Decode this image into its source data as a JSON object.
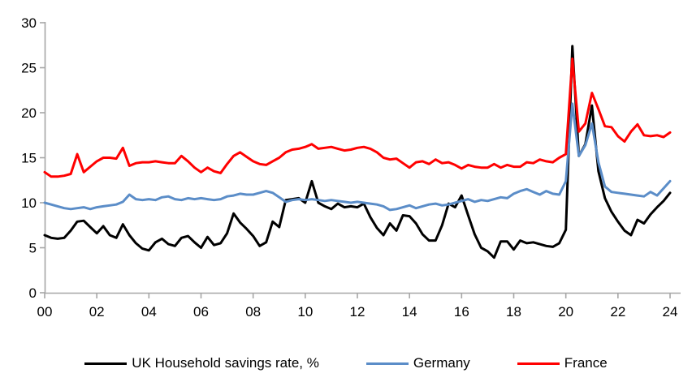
{
  "chart_data": {
    "type": "line",
    "title": "",
    "xlabel": "",
    "ylabel": "",
    "grid": false,
    "legend_position": "bottom",
    "x_start_year": 2000,
    "x_step_years": 0.25,
    "x_axis": {
      "tick_labels": [
        "00",
        "02",
        "04",
        "06",
        "08",
        "10",
        "12",
        "14",
        "16",
        "18",
        "20",
        "22",
        "24"
      ],
      "quarters_per_tick": 8
    },
    "y_axis": {
      "ticks": [
        0,
        5,
        10,
        15,
        20,
        25,
        30
      ],
      "range": [
        0,
        30
      ]
    },
    "series": [
      {
        "name": "UK Household savings rate, %",
        "color": "#000000",
        "values": [
          6.4,
          6.1,
          6.0,
          6.1,
          6.9,
          7.9,
          8.0,
          7.3,
          6.6,
          7.4,
          6.4,
          6.1,
          7.6,
          6.4,
          5.5,
          4.9,
          4.7,
          5.6,
          6.0,
          5.4,
          5.2,
          6.1,
          6.3,
          5.6,
          5.0,
          6.2,
          5.3,
          5.5,
          6.6,
          8.8,
          7.8,
          7.1,
          6.3,
          5.2,
          5.6,
          7.9,
          7.3,
          10.3,
          10.4,
          10.5,
          10.0,
          12.4,
          10.0,
          9.6,
          9.3,
          9.9,
          9.5,
          9.6,
          9.5,
          9.9,
          8.4,
          7.2,
          6.4,
          7.7,
          6.9,
          8.6,
          8.5,
          7.7,
          6.5,
          5.8,
          5.8,
          7.5,
          9.9,
          9.5,
          10.8,
          8.6,
          6.5,
          5.0,
          4.6,
          3.9,
          5.7,
          5.7,
          4.8,
          5.8,
          5.5,
          5.6,
          5.4,
          5.2,
          5.1,
          5.5,
          7.0,
          27.4,
          15.2,
          16.5,
          20.8,
          13.5,
          10.5,
          9.0,
          7.9,
          6.9,
          6.4,
          8.1,
          7.7,
          8.7,
          9.5,
          10.2,
          11.1
        ]
      },
      {
        "name": "Germany",
        "color": "#5B8DC8",
        "values": [
          10.0,
          9.8,
          9.6,
          9.4,
          9.3,
          9.4,
          9.5,
          9.3,
          9.5,
          9.6,
          9.7,
          9.8,
          10.1,
          10.9,
          10.4,
          10.3,
          10.4,
          10.3,
          10.6,
          10.7,
          10.4,
          10.3,
          10.5,
          10.4,
          10.5,
          10.4,
          10.3,
          10.4,
          10.7,
          10.8,
          11.0,
          10.9,
          10.9,
          11.1,
          11.3,
          11.1,
          10.6,
          10.1,
          10.3,
          10.4,
          10.3,
          10.4,
          10.3,
          10.2,
          10.3,
          10.2,
          10.1,
          10.0,
          10.1,
          10.0,
          9.9,
          9.8,
          9.6,
          9.2,
          9.3,
          9.5,
          9.7,
          9.4,
          9.6,
          9.8,
          9.9,
          9.7,
          9.8,
          10.0,
          10.2,
          10.4,
          10.1,
          10.3,
          10.2,
          10.4,
          10.6,
          10.5,
          11.0,
          11.3,
          11.5,
          11.2,
          10.9,
          11.3,
          11.0,
          10.9,
          12.4,
          21.0,
          15.2,
          16.4,
          18.8,
          14.5,
          11.8,
          11.2,
          11.1,
          11.0,
          10.9,
          10.8,
          10.7,
          11.2,
          10.8,
          11.6,
          12.4
        ]
      },
      {
        "name": "France",
        "color": "#FF0000",
        "values": [
          13.4,
          12.9,
          12.9,
          13.0,
          13.2,
          15.4,
          13.4,
          14.0,
          14.6,
          15.0,
          15.0,
          14.9,
          16.1,
          14.1,
          14.4,
          14.5,
          14.5,
          14.6,
          14.5,
          14.4,
          14.4,
          15.2,
          14.6,
          13.9,
          13.4,
          13.9,
          13.5,
          13.3,
          14.3,
          15.2,
          15.6,
          15.1,
          14.6,
          14.3,
          14.2,
          14.6,
          15.0,
          15.6,
          15.9,
          16.0,
          16.2,
          16.5,
          16.0,
          16.1,
          16.2,
          16.0,
          15.8,
          15.9,
          16.1,
          16.2,
          16.0,
          15.6,
          15.0,
          14.8,
          14.9,
          14.4,
          13.9,
          14.5,
          14.6,
          14.3,
          14.8,
          14.4,
          14.5,
          14.2,
          13.8,
          14.2,
          14.0,
          13.9,
          13.9,
          14.3,
          13.9,
          14.2,
          14.0,
          14.0,
          14.5,
          14.4,
          14.8,
          14.6,
          14.5,
          15.0,
          15.4,
          26.0,
          17.9,
          18.8,
          22.2,
          20.4,
          18.5,
          18.4,
          17.4,
          16.8,
          17.9,
          18.7,
          17.5,
          17.4,
          17.5,
          17.3,
          17.8
        ]
      }
    ]
  },
  "colors": {
    "axis": "#A6A6A6",
    "text": "#000000",
    "background": "#FFFFFF"
  }
}
